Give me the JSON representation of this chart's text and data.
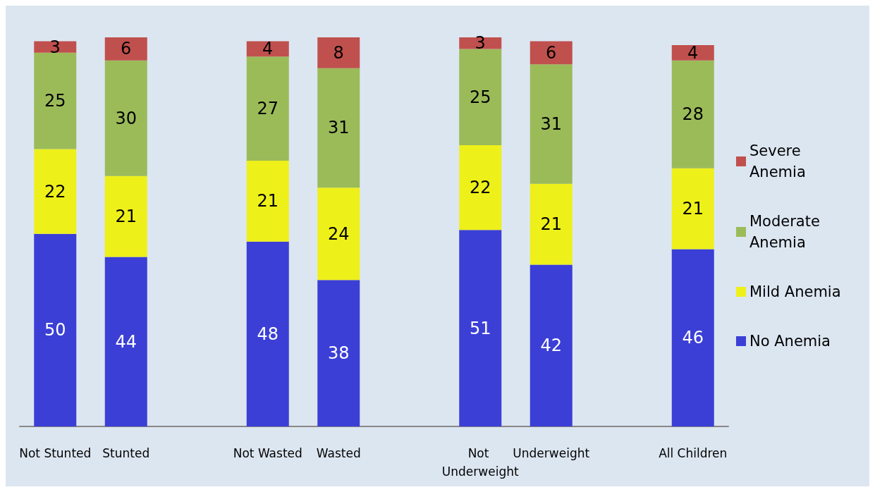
{
  "chart_data": {
    "type": "bar",
    "stacked": true,
    "data_labels": true,
    "legend": "right",
    "categories": [
      "Not Stunted",
      "Stunted",
      null,
      "Not Wasted",
      "Wasted",
      null,
      "Not Underweight",
      "Underweight",
      null,
      "All Children"
    ],
    "series": [
      {
        "name": "No Anemia",
        "color": "#3b3fd6",
        "values": [
          50,
          44,
          null,
          48,
          38,
          null,
          51,
          42,
          null,
          46
        ]
      },
      {
        "name": "Mild Anemia",
        "color": "#eef01a",
        "values": [
          22,
          21,
          null,
          21,
          24,
          null,
          22,
          21,
          null,
          21
        ]
      },
      {
        "name": "Moderate Anemia",
        "color": "#9bbb59",
        "values": [
          25,
          30,
          null,
          27,
          31,
          null,
          25,
          31,
          null,
          28
        ]
      },
      {
        "name": "Severe Anemia",
        "color": "#c0504d",
        "values": [
          3,
          6,
          null,
          4,
          8,
          null,
          3,
          6,
          null,
          4
        ]
      }
    ]
  }
}
